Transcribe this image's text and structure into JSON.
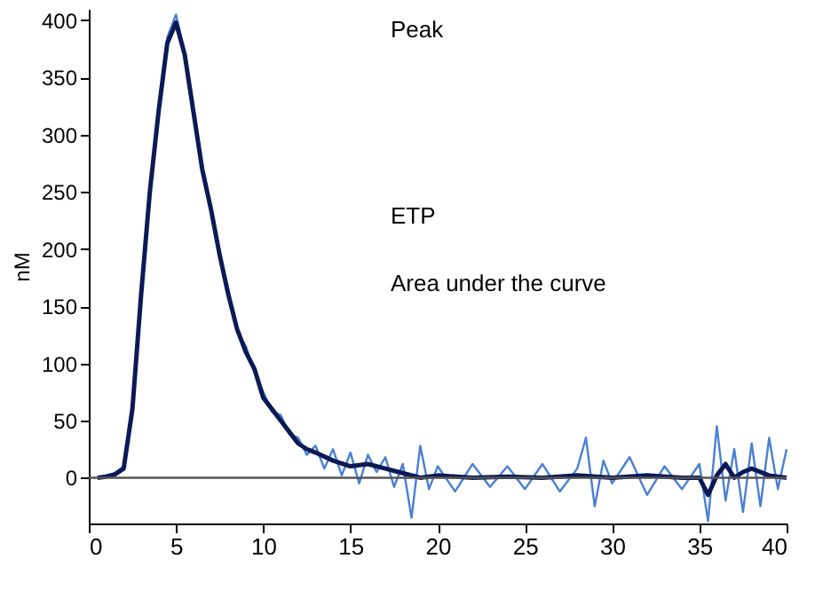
{
  "chart_data": {
    "type": "line",
    "ylabel": "nM",
    "annotations": [
      "Peak",
      "ETP",
      "Area under the curve"
    ],
    "xlim": [
      0,
      40
    ],
    "xticks": [
      0,
      5,
      10,
      15,
      20,
      25,
      30,
      35,
      40
    ],
    "ylim": [
      -40,
      410
    ],
    "yticks": [
      0,
      50,
      100,
      150,
      200,
      250,
      300,
      350,
      400
    ],
    "grid": false,
    "marker": "none",
    "line_style": "solid",
    "ref_lines": [
      {
        "axis": "y",
        "value": 0,
        "color": "#555555"
      }
    ],
    "series": [
      {
        "color": "#4a7fd4",
        "x": [
          0.5,
          1,
          1.5,
          2,
          2.5,
          3,
          3.5,
          4,
          4.5,
          5,
          5.5,
          6,
          6.5,
          7,
          7.5,
          8,
          8.5,
          9,
          9.5,
          10,
          10.5,
          11,
          11.5,
          12,
          12.5,
          13,
          13.5,
          14,
          14.5,
          15,
          15.5,
          16,
          16.5,
          17,
          17.5,
          18,
          18.5,
          19,
          19.5,
          20,
          21,
          22,
          23,
          24,
          25,
          26,
          27,
          28,
          28.5,
          29,
          29.5,
          30,
          31,
          32,
          33,
          34,
          35,
          35.5,
          36,
          36.5,
          37,
          37.5,
          38,
          38.5,
          39,
          39.5,
          40
        ],
        "values": [
          0,
          2,
          4,
          10,
          65,
          165,
          255,
          325,
          385,
          405,
          372,
          322,
          268,
          238,
          192,
          165,
          128,
          115,
          92,
          75,
          58,
          55,
          38,
          35,
          20,
          28,
          8,
          25,
          2,
          22,
          -5,
          20,
          5,
          18,
          -8,
          12,
          -35,
          28,
          -10,
          10,
          -12,
          12,
          -8,
          10,
          -10,
          12,
          -12,
          8,
          35,
          -25,
          15,
          -5,
          18,
          -15,
          10,
          -10,
          12,
          -38,
          45,
          -20,
          25,
          -30,
          30,
          -25,
          35,
          -10,
          25
        ]
      },
      {
        "color": "#0b1a55",
        "x": [
          0.5,
          1,
          1.5,
          2,
          2.5,
          3,
          3.5,
          4,
          4.5,
          5,
          5.5,
          6,
          6.5,
          7,
          7.5,
          8,
          8.5,
          9,
          9.5,
          10,
          10.5,
          11,
          11.5,
          12,
          12.5,
          13,
          14,
          15,
          16,
          17,
          18,
          19,
          20,
          22,
          24,
          26,
          28,
          30,
          32,
          34,
          35,
          35.5,
          36,
          36.5,
          37,
          37.5,
          38,
          39,
          40
        ],
        "values": [
          0,
          1,
          3,
          8,
          60,
          160,
          250,
          320,
          380,
          398,
          370,
          320,
          270,
          235,
          195,
          160,
          130,
          110,
          95,
          70,
          60,
          50,
          40,
          30,
          25,
          22,
          15,
          10,
          12,
          8,
          4,
          0,
          2,
          0,
          1,
          0,
          2,
          0,
          2,
          0,
          0,
          -15,
          2,
          12,
          0,
          5,
          8,
          2,
          0
        ]
      }
    ]
  }
}
